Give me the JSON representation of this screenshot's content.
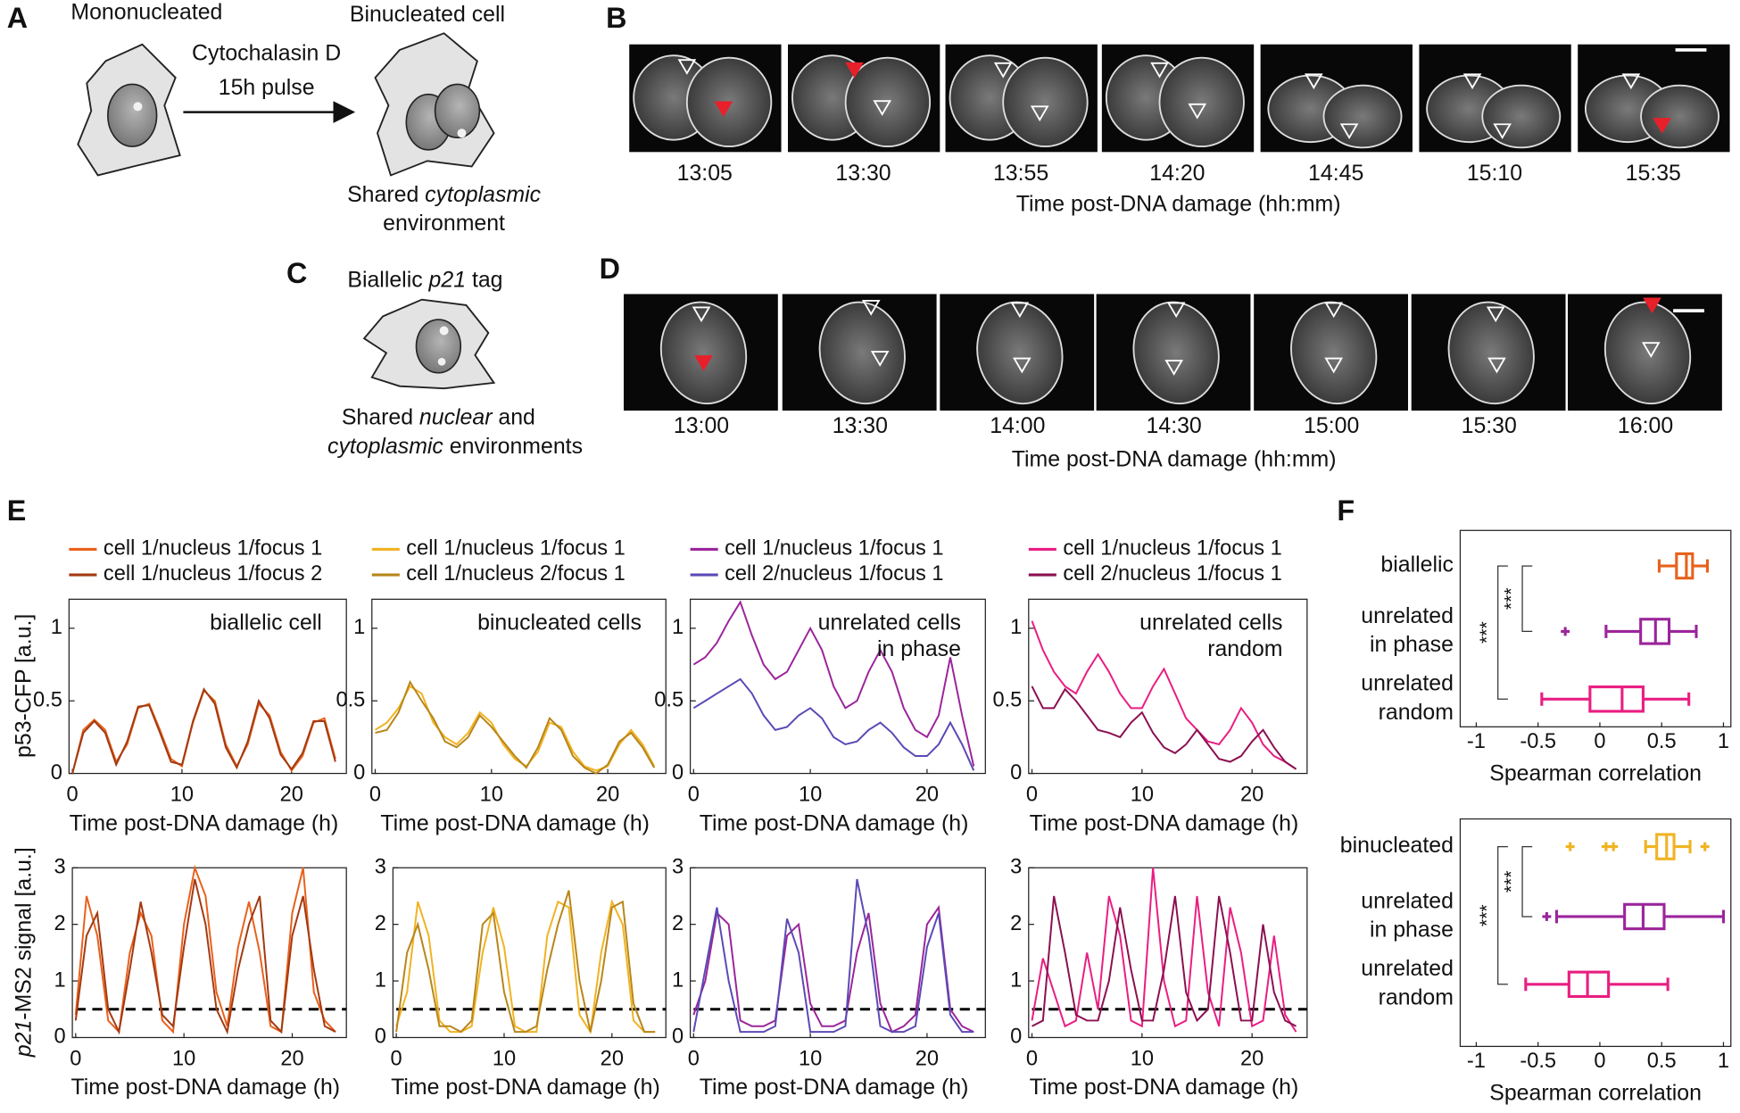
{
  "panels": {
    "A": {
      "label": "A",
      "left_caption": "Mononucleated",
      "treatment": [
        "Cytochalasin D",
        "15h pulse"
      ],
      "right_caption": "Binucleated cell",
      "note": [
        [
          "Shared ",
          "cytoplasmic"
        ],
        [
          "environment"
        ]
      ]
    },
    "B": {
      "label": "B",
      "times": [
        "13:05",
        "13:30",
        "13:55",
        "14:20",
        "14:45",
        "15:10",
        "15:35"
      ],
      "xlabel": "Time post-DNA damage (hh:mm)"
    },
    "C": {
      "label": "C",
      "caption": [
        "Biallelic ",
        "p21",
        " tag"
      ],
      "note": [
        [
          "Shared ",
          "nuclear",
          " and"
        ],
        [
          "cytoplasmic",
          " environments"
        ]
      ]
    },
    "D": {
      "label": "D",
      "times": [
        "13:00",
        "13:30",
        "14:00",
        "14:30",
        "15:00",
        "15:30",
        "16:00"
      ],
      "xlabel": "Time post-DNA damage (hh:mm)"
    },
    "E": {
      "label": "E"
    },
    "F": {
      "label": "F"
    }
  },
  "chart_data": [
    {
      "type": "line",
      "legend": true,
      "ylabel": [
        "p53-CFP [a.u.]"
      ],
      "annotation": [
        "biallelic cell"
      ],
      "xlabel": "Time post-DNA damage (h)",
      "xlim": [
        0,
        25
      ],
      "xticks": [
        0,
        10,
        20
      ],
      "ylim": [
        0,
        1.2
      ],
      "yticks": [
        0,
        0.5,
        1
      ],
      "x": [
        0,
        1,
        2,
        3,
        4,
        5,
        6,
        7,
        8,
        9,
        10,
        11,
        12,
        13,
        14,
        15,
        16,
        17,
        18,
        19,
        20,
        21,
        22,
        23,
        24
      ],
      "series": [
        {
          "name": "cell 1/nucleus 1/focus 1",
          "color": "#e8611c",
          "values": [
            0,
            0.3,
            0.37,
            0.3,
            0.08,
            0.2,
            0.45,
            0.48,
            0.3,
            0.1,
            0.05,
            0.35,
            0.57,
            0.5,
            0.2,
            0.05,
            0.2,
            0.48,
            0.4,
            0.15,
            0.02,
            0.12,
            0.35,
            0.38,
            0.1
          ]
        },
        {
          "name": "cell 1/nucleus 1/focus 2",
          "color": "#a33a12",
          "values": [
            0,
            0.28,
            0.36,
            0.28,
            0.06,
            0.22,
            0.46,
            0.47,
            0.28,
            0.08,
            0.06,
            0.36,
            0.58,
            0.48,
            0.18,
            0.04,
            0.22,
            0.5,
            0.38,
            0.13,
            0.03,
            0.14,
            0.36,
            0.36,
            0.08
          ]
        }
      ]
    },
    {
      "type": "line",
      "legend": true,
      "annotation": [
        "binucleated cells"
      ],
      "xlabel": "Time post-DNA damage (h)",
      "xlim": [
        0,
        25
      ],
      "xticks": [
        0,
        10,
        20
      ],
      "ylim": [
        0,
        1.2
      ],
      "yticks": [
        0,
        0.5,
        1
      ],
      "x": [
        0,
        1,
        2,
        3,
        4,
        5,
        6,
        7,
        8,
        9,
        10,
        11,
        12,
        13,
        14,
        15,
        16,
        17,
        18,
        19,
        20,
        21,
        22,
        23,
        24
      ],
      "series": [
        {
          "name": "cell 1/nucleus 1/focus 1",
          "color": "#f0b323",
          "values": [
            0.3,
            0.35,
            0.45,
            0.6,
            0.55,
            0.35,
            0.25,
            0.2,
            0.28,
            0.42,
            0.35,
            0.2,
            0.1,
            0.05,
            0.15,
            0.35,
            0.32,
            0.15,
            0.05,
            0.02,
            0.05,
            0.2,
            0.3,
            0.2,
            0.05
          ]
        },
        {
          "name": "cell 1/nucleus 2/focus 1",
          "color": "#b8861a",
          "values": [
            0.28,
            0.3,
            0.42,
            0.63,
            0.5,
            0.38,
            0.22,
            0.18,
            0.25,
            0.4,
            0.32,
            0.22,
            0.12,
            0.04,
            0.18,
            0.38,
            0.3,
            0.12,
            0.04,
            0,
            0.06,
            0.22,
            0.28,
            0.18,
            0.04
          ]
        }
      ]
    },
    {
      "type": "line",
      "legend": true,
      "annotation": [
        "unrelated cells",
        "in phase"
      ],
      "xlabel": "Time post-DNA damage (h)",
      "xlim": [
        0,
        25
      ],
      "xticks": [
        0,
        10,
        20
      ],
      "ylim": [
        0,
        1.2
      ],
      "yticks": [
        0,
        0.5,
        1
      ],
      "x": [
        0,
        1,
        2,
        3,
        4,
        5,
        6,
        7,
        8,
        9,
        10,
        11,
        12,
        13,
        14,
        15,
        16,
        17,
        18,
        19,
        20,
        21,
        22,
        23,
        24
      ],
      "series": [
        {
          "name": "cell 1/nucleus 1/focus 1",
          "color": "#9b259b",
          "values": [
            0.75,
            0.8,
            0.9,
            1.05,
            1.18,
            0.95,
            0.75,
            0.65,
            0.7,
            0.85,
            1.0,
            0.85,
            0.6,
            0.45,
            0.5,
            0.7,
            0.85,
            0.7,
            0.45,
            0.3,
            0.25,
            0.4,
            0.8,
            0.4,
            0.05
          ]
        },
        {
          "name": "cell 2/nucleus 1/focus 1",
          "color": "#5b4ab5",
          "values": [
            0.45,
            0.5,
            0.55,
            0.6,
            0.65,
            0.55,
            0.4,
            0.3,
            0.32,
            0.4,
            0.45,
            0.38,
            0.25,
            0.2,
            0.22,
            0.3,
            0.35,
            0.28,
            0.18,
            0.12,
            0.12,
            0.2,
            0.35,
            0.2,
            0.02
          ]
        }
      ]
    },
    {
      "type": "line",
      "legend": true,
      "annotation": [
        "unrelated cells",
        "random"
      ],
      "xlabel": "Time post-DNA damage (h)",
      "xlim": [
        0,
        25
      ],
      "xticks": [
        0,
        10,
        20
      ],
      "ylim": [
        0,
        1.2
      ],
      "yticks": [
        0,
        0.5,
        1
      ],
      "x": [
        0,
        1,
        2,
        3,
        4,
        5,
        6,
        7,
        8,
        9,
        10,
        11,
        12,
        13,
        14,
        15,
        16,
        17,
        18,
        19,
        20,
        21,
        22,
        23,
        24
      ],
      "series": [
        {
          "name": "cell 1/nucleus 1/focus 1",
          "color": "#e91e82",
          "values": [
            1.05,
            0.85,
            0.7,
            0.6,
            0.55,
            0.7,
            0.82,
            0.7,
            0.55,
            0.45,
            0.45,
            0.6,
            0.72,
            0.55,
            0.38,
            0.3,
            0.22,
            0.2,
            0.3,
            0.45,
            0.35,
            0.2,
            0.12,
            0.08,
            0.03
          ]
        },
        {
          "name": "cell 2/nucleus 1/focus 1",
          "color": "#8b1050",
          "values": [
            0.6,
            0.45,
            0.45,
            0.58,
            0.5,
            0.4,
            0.3,
            0.28,
            0.25,
            0.35,
            0.42,
            0.28,
            0.18,
            0.14,
            0.2,
            0.3,
            0.2,
            0.1,
            0.08,
            0.12,
            0.22,
            0.3,
            0.18,
            0.08,
            0.03
          ]
        }
      ]
    },
    {
      "type": "line",
      "legend": false,
      "ylabel": [
        "p21",
        "-MS2 signal [a.u.]"
      ],
      "threshold": 0.5,
      "xlabel": "Time post-DNA damage (h)",
      "xlim": [
        0,
        25
      ],
      "xticks": [
        0,
        10,
        20
      ],
      "ylim": [
        0,
        3
      ],
      "yticks": [
        0,
        1,
        2,
        3
      ],
      "x": [
        0,
        1,
        2,
        3,
        4,
        5,
        6,
        7,
        8,
        9,
        10,
        11,
        12,
        13,
        14,
        15,
        16,
        17,
        18,
        19,
        20,
        21,
        22,
        23,
        24
      ],
      "series": [
        {
          "name": "cell 1/nucleus 1/focus 1",
          "color": "#e8611c",
          "values": [
            0.4,
            2.5,
            1.8,
            0.3,
            0.1,
            1.5,
            2.2,
            1.8,
            0.3,
            0.1,
            2.0,
            3.0,
            2.5,
            0.8,
            0.2,
            1.6,
            2.4,
            1.5,
            0.2,
            0.1,
            2.2,
            3.0,
            0.8,
            0.3,
            0.1
          ]
        },
        {
          "name": "cell 1/nucleus 1/focus 2",
          "color": "#a33a12",
          "values": [
            0.3,
            1.8,
            2.2,
            0.5,
            0.1,
            1.2,
            2.4,
            1.5,
            0.4,
            0.2,
            1.6,
            2.8,
            2.0,
            0.5,
            0.1,
            1.2,
            2.0,
            2.5,
            0.3,
            0.1,
            1.8,
            2.5,
            1.2,
            0.2,
            0.1
          ]
        }
      ]
    },
    {
      "type": "line",
      "legend": false,
      "threshold": 0.5,
      "xlabel": "Time post-DNA damage (h)",
      "xlim": [
        0,
        25
      ],
      "xticks": [
        0,
        10,
        20
      ],
      "ylim": [
        0,
        3
      ],
      "yticks": [
        0,
        1,
        2,
        3
      ],
      "x": [
        0,
        1,
        2,
        3,
        4,
        5,
        6,
        7,
        8,
        9,
        10,
        11,
        12,
        13,
        14,
        15,
        16,
        17,
        18,
        19,
        20,
        21,
        22,
        23,
        24
      ],
      "series": [
        {
          "name": "cell 1/nucleus 1/focus 1",
          "color": "#f0b323",
          "values": [
            0.2,
            0.8,
            2.4,
            1.8,
            0.3,
            0.1,
            0.1,
            0.2,
            1.5,
            2.3,
            1.6,
            0.2,
            0.1,
            0.1,
            1.8,
            2.4,
            2.3,
            0.4,
            0.1,
            1.5,
            2.4,
            2.0,
            0.3,
            0.1,
            0.1
          ]
        },
        {
          "name": "cell 1/nucleus 2/focus 1",
          "color": "#b8861a",
          "values": [
            0.1,
            1.5,
            2.0,
            1.2,
            0.2,
            0.2,
            0.1,
            0.3,
            2.0,
            2.2,
            0.8,
            0.1,
            0.1,
            0.2,
            1.2,
            2.0,
            2.6,
            1.0,
            0.1,
            1.0,
            2.3,
            2.4,
            0.6,
            0.1,
            0.1
          ]
        }
      ]
    },
    {
      "type": "line",
      "legend": false,
      "threshold": 0.5,
      "xlabel": "Time post-DNA damage (h)",
      "xlim": [
        0,
        25
      ],
      "xticks": [
        0,
        10,
        20
      ],
      "ylim": [
        0,
        3
      ],
      "yticks": [
        0,
        1,
        2,
        3
      ],
      "x": [
        0,
        1,
        2,
        3,
        4,
        5,
        6,
        7,
        8,
        9,
        10,
        11,
        12,
        13,
        14,
        15,
        16,
        17,
        18,
        19,
        20,
        21,
        22,
        23,
        24
      ],
      "series": [
        {
          "name": "cell 1/nucleus 1/focus 1",
          "color": "#9b259b",
          "values": [
            0.4,
            1.0,
            2.2,
            2.0,
            0.3,
            0.2,
            0.2,
            0.3,
            1.8,
            2.0,
            0.6,
            0.2,
            0.2,
            0.3,
            1.5,
            2.2,
            0.6,
            0.1,
            0.2,
            0.4,
            2.0,
            2.3,
            0.5,
            0.2,
            0.1
          ]
        },
        {
          "name": "cell 2/nucleus 1/focus 1",
          "color": "#5b4ab5",
          "values": [
            0.1,
            1.2,
            2.3,
            1.0,
            0.1,
            0.1,
            0.1,
            0.2,
            2.1,
            1.5,
            0.1,
            0.1,
            0.1,
            0.2,
            2.8,
            1.8,
            0.2,
            0.1,
            0.1,
            0.2,
            1.6,
            2.2,
            0.4,
            0.1,
            0.1
          ]
        }
      ]
    },
    {
      "type": "line",
      "legend": false,
      "threshold": 0.5,
      "xlabel": "Time post-DNA damage (h)",
      "xlim": [
        0,
        25
      ],
      "xticks": [
        0,
        10,
        20
      ],
      "ylim": [
        0,
        3
      ],
      "yticks": [
        0,
        1,
        2,
        3
      ],
      "x": [
        0,
        1,
        2,
        3,
        4,
        5,
        6,
        7,
        8,
        9,
        10,
        11,
        12,
        13,
        14,
        15,
        16,
        17,
        18,
        19,
        20,
        21,
        22,
        23,
        24
      ],
      "series": [
        {
          "name": "cell 1/nucleus 1/focus 1",
          "color": "#e91e82",
          "values": [
            0.3,
            1.4,
            0.8,
            0.2,
            0.3,
            1.5,
            0.5,
            2.5,
            1.8,
            0.3,
            0.2,
            3.0,
            1.0,
            0.2,
            0.3,
            2.5,
            0.8,
            0.2,
            2.3,
            1.5,
            0.2,
            0.3,
            1.8,
            0.4,
            0.1
          ]
        },
        {
          "name": "cell 2/nucleus 1/focus 1",
          "color": "#8b1050",
          "values": [
            0.2,
            0.3,
            2.5,
            1.5,
            0.4,
            0.3,
            0.3,
            1.0,
            2.3,
            1.2,
            0.3,
            0.3,
            1.2,
            2.5,
            0.8,
            0.3,
            0.5,
            2.5,
            1.5,
            0.3,
            0.3,
            2.0,
            0.8,
            0.3,
            0.2
          ]
        }
      ]
    },
    {
      "type": "box",
      "xlabel": "Spearman correlation",
      "xlim": [
        -1.13,
        1.06
      ],
      "xticks": [
        -1,
        -0.5,
        0,
        0.5,
        1
      ],
      "significance": [
        "***",
        "***"
      ],
      "categories": [
        [
          "biallelic"
        ],
        [
          "unrelated",
          "in phase"
        ],
        [
          "unrelated",
          "random"
        ]
      ],
      "boxes": [
        {
          "color": "#e8611c",
          "whisker_low": 0.48,
          "q1": 0.62,
          "median": 0.7,
          "q3": 0.75,
          "whisker_high": 0.87,
          "outliers": []
        },
        {
          "color": "#9b259b",
          "whisker_low": 0.05,
          "q1": 0.33,
          "median": 0.45,
          "q3": 0.56,
          "whisker_high": 0.78,
          "outliers": [
            -0.28
          ]
        },
        {
          "color": "#e91e82",
          "whisker_low": -0.47,
          "q1": -0.08,
          "median": 0.18,
          "q3": 0.35,
          "whisker_high": 0.72,
          "outliers": []
        }
      ]
    },
    {
      "type": "box",
      "xlabel": "Spearman correlation",
      "xlim": [
        -1.13,
        1.06
      ],
      "xticks": [
        -1,
        -0.5,
        0,
        0.5,
        1
      ],
      "significance": [
        "***",
        "***"
      ],
      "categories": [
        [
          "binucleated"
        ],
        [
          "unrelated",
          "in phase"
        ],
        [
          "unrelated",
          "random"
        ]
      ],
      "boxes": [
        {
          "color": "#f0b323",
          "whisker_low": 0.37,
          "q1": 0.46,
          "median": 0.54,
          "q3": 0.6,
          "whisker_high": 0.73,
          "outliers": [
            -0.24,
            0.05,
            0.11,
            0.85
          ]
        },
        {
          "color": "#9b259b",
          "whisker_low": -0.35,
          "q1": 0.2,
          "median": 0.35,
          "q3": 0.52,
          "whisker_high": 1.0,
          "outliers": [
            -0.43
          ]
        },
        {
          "color": "#e91e82",
          "whisker_low": -0.6,
          "q1": -0.25,
          "median": -0.1,
          "q3": 0.07,
          "whisker_high": 0.55,
          "outliers": []
        }
      ]
    }
  ]
}
